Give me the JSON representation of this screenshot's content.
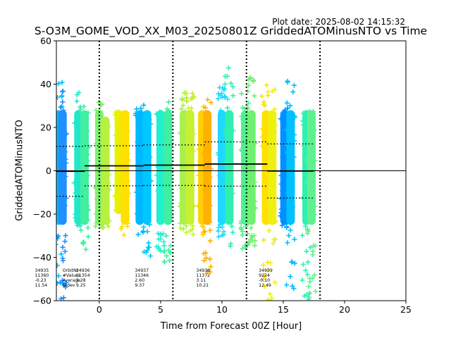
{
  "plot_date": "Plot date: 2025-08-02 14:15:32",
  "chart_data": {
    "type": "scatter",
    "title": "S-O3M_GOME_VOD_XX_M03_20250801Z GriddedATOMinusNTO vs Time",
    "xlabel": "Time from Forecast 00Z [Hour]",
    "ylabel": "GriddedATOMinusNTO",
    "xlim": [
      -3.5,
      25
    ],
    "ylim": [
      -60,
      60
    ],
    "xticks": [
      0,
      5,
      10,
      15,
      20,
      25
    ],
    "yticks": [
      -60,
      -40,
      -20,
      0,
      20,
      40,
      60
    ],
    "grid": false,
    "reference_line_y": 0,
    "forecast_lines_x": [
      0,
      6,
      12,
      18
    ],
    "marker": "plus",
    "stat_labels": [
      "OrbitNr",
      "#Values",
      "Average",
      "Stdev"
    ],
    "orbits": [
      {
        "orbit": "34935",
        "values": "11360",
        "average": "-0.23",
        "stdev": "11.54",
        "x_start": -3.5,
        "x_end": -1.2,
        "mean": -0.23,
        "std": 11.54
      },
      {
        "orbit": "34936",
        "values": "11354",
        "average": "2.28",
        "stdev": "9.25",
        "x_start": -1.2,
        "x_end": 3.6,
        "mean": 2.28,
        "std": 9.25
      },
      {
        "orbit": "34937",
        "values": "11346",
        "average": "2.60",
        "stdev": "9.37",
        "x_start": 3.6,
        "x_end": 8.6,
        "mean": 2.6,
        "std": 9.37
      },
      {
        "orbit": "34938",
        "values": "11372",
        "average": "3.11",
        "stdev": "10.21",
        "x_start": 8.6,
        "x_end": 13.7,
        "mean": 3.11,
        "std": 10.21
      },
      {
        "orbit": "34939",
        "values": "9224",
        "average": "-0.10",
        "stdev": "12.49",
        "x_start": 13.7,
        "x_end": 17.5,
        "mean": -0.1,
        "std": 12.49
      }
    ],
    "clusters": [
      {
        "x": -3.3,
        "lo": -60,
        "hi": 43,
        "color": "#00bfff"
      },
      {
        "x": -3.0,
        "lo": -60,
        "hi": 37,
        "color": "#1e90ff"
      },
      {
        "x": -1.7,
        "lo": -28,
        "hi": 37,
        "color": "#20e8c8"
      },
      {
        "x": -1.2,
        "lo": -38,
        "hi": 30,
        "color": "#40f0a0"
      },
      {
        "x": 0.0,
        "lo": -27,
        "hi": 32,
        "color": "#80f070"
      },
      {
        "x": 0.5,
        "lo": -27,
        "hi": 25,
        "color": "#b8f040"
      },
      {
        "x": 1.6,
        "lo": -20,
        "hi": 29,
        "color": "#e8f000"
      },
      {
        "x": 2.1,
        "lo": -30,
        "hi": 30,
        "color": "#ffe000"
      },
      {
        "x": 3.3,
        "lo": -30,
        "hi": 31,
        "color": "#00b8ff"
      },
      {
        "x": 3.9,
        "lo": -43,
        "hi": 28,
        "color": "#00c8ff"
      },
      {
        "x": 5.0,
        "lo": -37,
        "hi": 34,
        "color": "#20f0d0"
      },
      {
        "x": 5.6,
        "lo": -43,
        "hi": 32,
        "color": "#40f0a0"
      },
      {
        "x": 6.9,
        "lo": -28,
        "hi": 38,
        "color": "#a8f050"
      },
      {
        "x": 7.4,
        "lo": -30,
        "hi": 36,
        "color": "#c8f030"
      },
      {
        "x": 8.4,
        "lo": -30,
        "hi": 30,
        "color": "#ffd000"
      },
      {
        "x": 8.8,
        "lo": -47,
        "hi": 34,
        "color": "#ffb000"
      },
      {
        "x": 10.0,
        "lo": -32,
        "hi": 41,
        "color": "#20d8ff"
      },
      {
        "x": 10.6,
        "lo": -35,
        "hi": 50,
        "color": "#30f0b0"
      },
      {
        "x": 11.9,
        "lo": -37,
        "hi": 36,
        "color": "#50f090"
      },
      {
        "x": 12.4,
        "lo": -40,
        "hi": 44,
        "color": "#70f070"
      },
      {
        "x": 13.6,
        "lo": -55,
        "hi": 40,
        "color": "#ffe000"
      },
      {
        "x": 14.1,
        "lo": -60,
        "hi": 38,
        "color": "#f0f010"
      },
      {
        "x": 15.1,
        "lo": -27,
        "hi": 30,
        "color": "#0090ff"
      },
      {
        "x": 15.6,
        "lo": -60,
        "hi": 43,
        "color": "#00c0ff"
      },
      {
        "x": 16.9,
        "lo": -60,
        "hi": 30,
        "color": "#30f0b0"
      },
      {
        "x": 17.3,
        "lo": -60,
        "hi": 29,
        "color": "#60f090"
      }
    ]
  }
}
